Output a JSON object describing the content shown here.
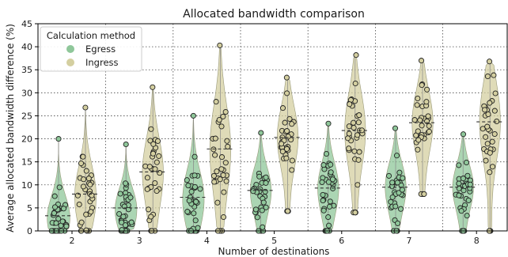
{
  "chart_data": {
    "type": "violin",
    "title": "Allocated bandwidth comparison",
    "xlabel": "Number of destinations",
    "ylabel": "Average allocated bandwidth difference (%)",
    "categories": [
      "2",
      "3",
      "4",
      "5",
      "6",
      "7",
      "8"
    ],
    "ylim": [
      0,
      45
    ],
    "yticks": [
      0,
      5,
      10,
      15,
      20,
      25,
      30,
      35,
      40,
      45
    ],
    "grid": "dotted",
    "legend": {
      "title": "Calculation method",
      "placement": "top-left",
      "entries": [
        "Egress",
        "Ingress"
      ]
    },
    "series": [
      {
        "name": "Egress",
        "color": "#8fc79a",
        "means": [
          3.3,
          5.0,
          7.3,
          8.8,
          9.3,
          9.5,
          9.5
        ],
        "mins": [
          0,
          0,
          0,
          0,
          0,
          0,
          0
        ],
        "maxs": [
          20.0,
          18.8,
          25.0,
          21.3,
          23.3,
          22.3,
          21.0
        ]
      },
      {
        "name": "Ingress",
        "color": "#d4cfa0",
        "means": [
          8.0,
          12.8,
          17.8,
          20.3,
          21.8,
          23.5,
          23.7
        ],
        "mins": [
          0,
          0,
          0,
          4.3,
          4.0,
          8.0,
          0
        ],
        "maxs": [
          26.8,
          31.2,
          40.3,
          33.3,
          38.2,
          37.0,
          36.8
        ]
      }
    ]
  }
}
